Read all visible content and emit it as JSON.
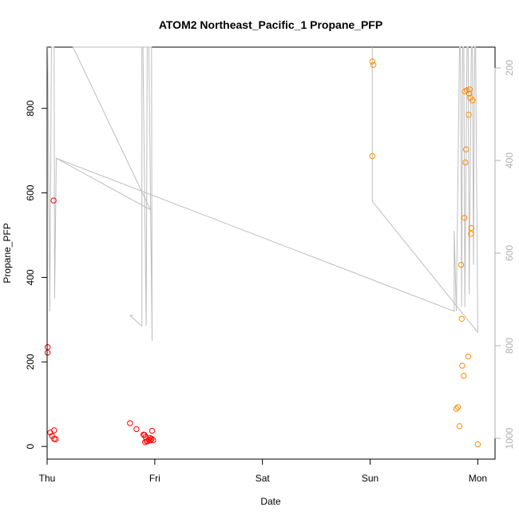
{
  "chart_data": {
    "type": "scatter",
    "title": "ATOM2 Northeast_Pacific_1 Propane_PFP",
    "xlabel": "Date",
    "ylabel": "Propane_PFP",
    "x_tick_labels": [
      "Thu",
      "Fri",
      "Sat",
      "Sun",
      "Mon"
    ],
    "xlim": [
      0,
      4.16
    ],
    "ylim": [
      -30,
      945
    ],
    "y_ticks": [
      0,
      200,
      400,
      600,
      800
    ],
    "y2_ticks": [
      200,
      400,
      600,
      800,
      1000
    ],
    "y2_reversed": true,
    "colors": {
      "red": "#ff0000",
      "orange": "#ff8c00",
      "line": "#bebebe",
      "axis": "#000000",
      "axis2": "#b0b0b0"
    },
    "series": [
      {
        "color": "red",
        "points": [
          [
            0.005,
            235
          ],
          [
            0.005,
            222
          ],
          [
            0.03,
            33
          ],
          [
            0.045,
            25
          ],
          [
            0.06,
            582
          ],
          [
            0.065,
            38
          ],
          [
            0.065,
            18
          ],
          [
            0.08,
            17
          ],
          [
            0.77,
            55
          ],
          [
            0.83,
            41
          ],
          [
            0.895,
            28
          ],
          [
            0.905,
            27
          ],
          [
            0.91,
            10
          ],
          [
            0.915,
            22
          ],
          [
            0.925,
            12
          ],
          [
            0.935,
            13
          ],
          [
            0.945,
            16
          ],
          [
            0.955,
            20
          ],
          [
            0.96,
            14
          ],
          [
            0.97,
            18
          ],
          [
            0.975,
            37
          ],
          [
            0.985,
            15
          ]
        ]
      },
      {
        "color": "orange",
        "points": [
          [
            3.02,
            911
          ],
          [
            3.03,
            903
          ],
          [
            3.02,
            687
          ],
          [
            3.8,
            89
          ],
          [
            3.815,
            93
          ],
          [
            3.83,
            48
          ],
          [
            3.845,
            430
          ],
          [
            3.85,
            302
          ],
          [
            3.855,
            191
          ],
          [
            3.87,
            167
          ],
          [
            3.875,
            541
          ],
          [
            3.88,
            840
          ],
          [
            3.885,
            672
          ],
          [
            3.89,
            703
          ],
          [
            3.9,
            843
          ],
          [
            3.91,
            213
          ],
          [
            3.915,
            785
          ],
          [
            3.92,
            835
          ],
          [
            3.925,
            845
          ],
          [
            3.93,
            825
          ],
          [
            3.935,
            503
          ],
          [
            3.94,
            517
          ],
          [
            3.95,
            819
          ],
          [
            4.0,
            5
          ]
        ]
      }
    ],
    "line_series": [
      {
        "color": "line",
        "points": [
          [
            0.005,
            945
          ],
          [
            0.025,
            320
          ],
          [
            0.04,
            945
          ],
          [
            0.065,
            945
          ],
          [
            0.07,
            350
          ],
          [
            0.085,
            682
          ],
          [
            0.96,
            560
          ],
          [
            0.24,
            945
          ],
          [
            0.955,
            945
          ],
          [
            0.97,
            945
          ],
          [
            0.975,
            250
          ],
          [
            0.945,
            945
          ],
          [
            0.93,
            945
          ],
          [
            0.92,
            285
          ],
          [
            0.89,
            945
          ],
          [
            0.88,
            945
          ],
          [
            0.88,
            285
          ],
          [
            0.77,
            310
          ],
          [
            0.8,
            310
          ]
        ]
      },
      {
        "color": "line",
        "points": [
          [
            0.085,
            682
          ],
          [
            3.78,
            320
          ],
          [
            3.78,
            510
          ],
          [
            3.8,
            320
          ],
          [
            3.83,
            945
          ],
          [
            3.84,
            945
          ],
          [
            3.85,
            330
          ],
          [
            3.86,
            945
          ],
          [
            3.87,
            945
          ],
          [
            3.88,
            330
          ],
          [
            3.9,
            945
          ],
          [
            3.91,
            945
          ],
          [
            3.92,
            360
          ],
          [
            3.94,
            945
          ],
          [
            3.95,
            945
          ],
          [
            3.96,
            430
          ],
          [
            3.97,
            945
          ],
          [
            3.98,
            945
          ],
          [
            4.0,
            270
          ],
          [
            3.02,
            580
          ],
          [
            3.02,
            945
          ]
        ]
      }
    ]
  }
}
